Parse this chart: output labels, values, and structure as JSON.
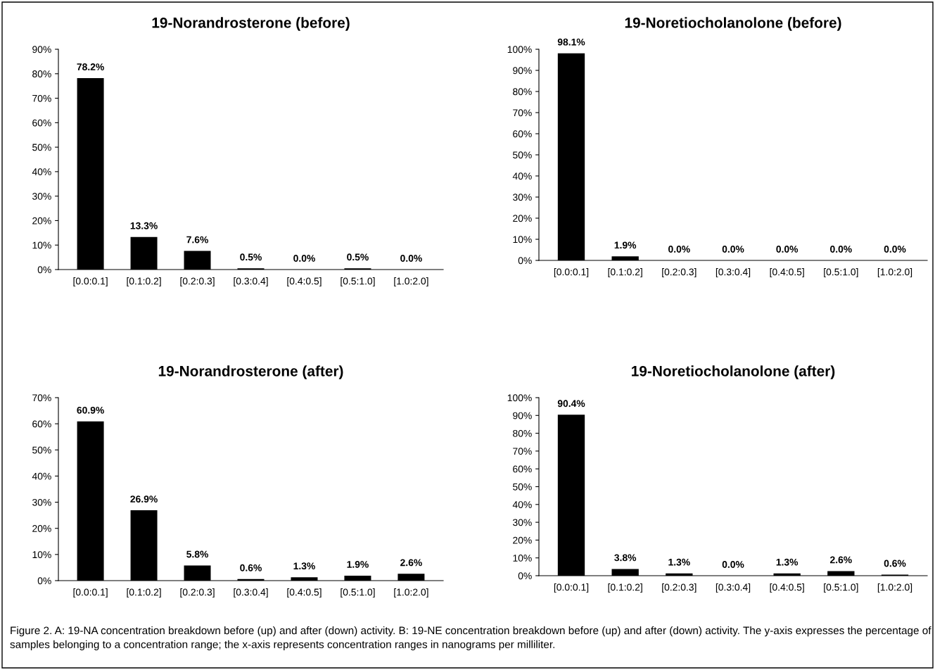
{
  "chart_data": [
    {
      "type": "bar",
      "title": "19-Norandrosterone (before)",
      "categories": [
        "[0.0:0.1]",
        "[0.1:0.2]",
        "[0.2:0.3]",
        "[0.3:0.4]",
        "[0.4:0.5]",
        "[0.5:1.0]",
        "[1.0:2.0]"
      ],
      "values": [
        78.2,
        13.3,
        7.6,
        0.5,
        0.0,
        0.5,
        0.0
      ],
      "value_labels": [
        "78.2%",
        "13.3%",
        "7.6%",
        "0.5%",
        "0.0%",
        "0.5%",
        "0.0%"
      ],
      "color": "#000000",
      "ylim": [
        0,
        90
      ],
      "yticks": [
        {
          "value": 0,
          "label": "0%"
        },
        {
          "value": 10,
          "label": "10%"
        },
        {
          "value": 20,
          "label": "20%"
        },
        {
          "value": 30,
          "label": "30%"
        },
        {
          "value": 40,
          "label": "40%"
        },
        {
          "value": 50,
          "label": "50%"
        },
        {
          "value": 60,
          "label": "60%"
        },
        {
          "value": 70,
          "label": "70%"
        },
        {
          "value": 80,
          "label": "80%"
        },
        {
          "value": 90,
          "label": "90%"
        }
      ],
      "grid": false,
      "legend": false
    },
    {
      "type": "bar",
      "title": "19-Noretiocholanolone (before)",
      "categories": [
        "[0.0:0.1]",
        "[0.1:0.2]",
        "[0.2:0.3]",
        "[0.3:0.4]",
        "[0.4:0.5]",
        "[0.5:1.0]",
        "[1.0:2.0]"
      ],
      "values": [
        98.1,
        1.9,
        0.0,
        0.0,
        0.0,
        0.0,
        0.0
      ],
      "value_labels": [
        "98.1%",
        "1.9%",
        "0.0%",
        "0.0%",
        "0.0%",
        "0.0%",
        "0.0%"
      ],
      "color": "#000000",
      "ylim": [
        0,
        100
      ],
      "yticks": [
        {
          "value": 0,
          "label": "0%"
        },
        {
          "value": 10,
          "label": "10%"
        },
        {
          "value": 20,
          "label": "20%"
        },
        {
          "value": 30,
          "label": "30%"
        },
        {
          "value": 40,
          "label": "40%"
        },
        {
          "value": 50,
          "label": "50%"
        },
        {
          "value": 60,
          "label": "60%"
        },
        {
          "value": 70,
          "label": "70%"
        },
        {
          "value": 80,
          "label": "80%"
        },
        {
          "value": 90,
          "label": "90%"
        },
        {
          "value": 100,
          "label": "100%"
        }
      ],
      "grid": false,
      "legend": false
    },
    {
      "type": "bar",
      "title": "19-Norandrosterone (after)",
      "categories": [
        "[0.0:0.1]",
        "[0.1:0.2]",
        "[0.2:0.3]",
        "[0.3:0.4]",
        "[0.4:0.5]",
        "[0.5:1.0]",
        "[1.0:2.0]"
      ],
      "values": [
        60.9,
        26.9,
        5.8,
        0.6,
        1.3,
        1.9,
        2.6
      ],
      "value_labels": [
        "60.9%",
        "26.9%",
        "5.8%",
        "0.6%",
        "1.3%",
        "1.9%",
        "2.6%"
      ],
      "color": "#000000",
      "ylim": [
        0,
        70
      ],
      "yticks": [
        {
          "value": 0,
          "label": "0%"
        },
        {
          "value": 10,
          "label": "10%"
        },
        {
          "value": 20,
          "label": "20%"
        },
        {
          "value": 30,
          "label": "30%"
        },
        {
          "value": 40,
          "label": "40%"
        },
        {
          "value": 50,
          "label": "50%"
        },
        {
          "value": 60,
          "label": "60%"
        },
        {
          "value": 70,
          "label": "70%"
        }
      ],
      "grid": false,
      "legend": false
    },
    {
      "type": "bar",
      "title": "19-Noretiocholanolone (after)",
      "categories": [
        "[0.0:0.1]",
        "[0.1:0.2]",
        "[0.2:0.3]",
        "[0.3:0.4]",
        "[0.4:0.5]",
        "[0.5:1.0]",
        "[1.0:2.0]"
      ],
      "values": [
        90.4,
        3.8,
        1.3,
        0.0,
        1.3,
        2.6,
        0.6
      ],
      "value_labels": [
        "90.4%",
        "3.8%",
        "1.3%",
        "0.0%",
        "1.3%",
        "2.6%",
        "0.6%"
      ],
      "color": "#000000",
      "ylim": [
        0,
        100
      ],
      "yticks": [
        {
          "value": 0,
          "label": "0%"
        },
        {
          "value": 10,
          "label": "10%"
        },
        {
          "value": 20,
          "label": "20%"
        },
        {
          "value": 30,
          "label": "30%"
        },
        {
          "value": 40,
          "label": "40%"
        },
        {
          "value": 50,
          "label": "50%"
        },
        {
          "value": 60,
          "label": "60%"
        },
        {
          "value": 70,
          "label": "70%"
        },
        {
          "value": 80,
          "label": "80%"
        },
        {
          "value": 90,
          "label": "90%"
        },
        {
          "value": 100,
          "label": "100%"
        }
      ],
      "grid": false,
      "legend": false,
      "annotations": [
        "Figure 2. A: 19-NA concentration breakdown before (up) and after (down) activity. B: 19-NE concentration breakdown before (up) and after (down) activity. The y-axis expresses the percentage of samples belonging to a concentration range; the x-axis represents concentration ranges in nanograms per milliliter."
      ]
    }
  ]
}
